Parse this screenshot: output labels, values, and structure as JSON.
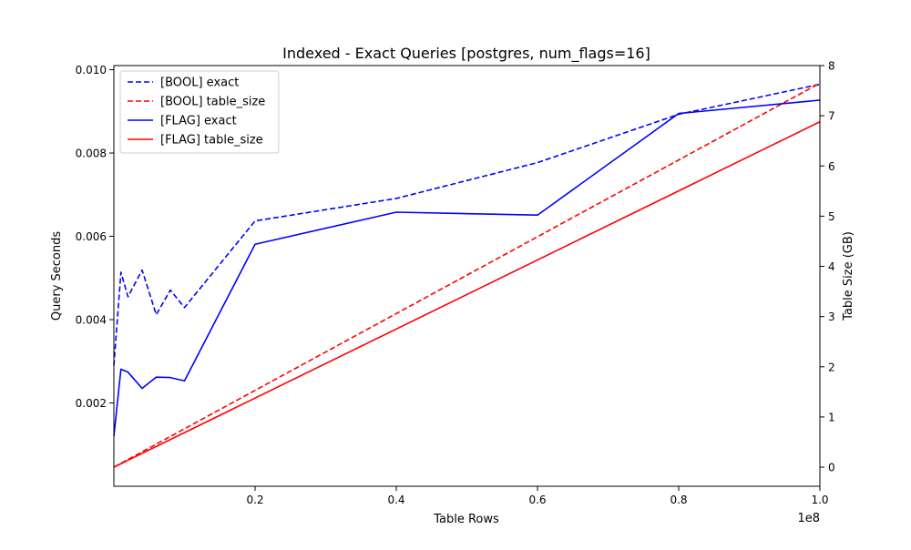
{
  "chart_data": {
    "type": "line",
    "title": "Indexed - Exact Queries [postgres, num_flags=16]",
    "xlabel": "Table Rows",
    "ylabel": "Query Seconds",
    "y2label": "Table Size (GB)",
    "x_offset_text": "1e8",
    "xlim": [
      0,
      1.0
    ],
    "ylim": [
      0.0,
      0.0101
    ],
    "y2lim": [
      -0.38,
      8.0
    ],
    "x_ticks": [
      0.2,
      0.4,
      0.6,
      0.8,
      1.0
    ],
    "x_tick_labels": [
      "0.2",
      "0.4",
      "0.6",
      "0.8",
      "1.0"
    ],
    "y_ticks": [
      0.002,
      0.004,
      0.006,
      0.008,
      0.01
    ],
    "y_tick_labels": [
      "0.002",
      "0.004",
      "0.006",
      "0.008",
      "0.010"
    ],
    "y2_ticks": [
      0,
      1,
      2,
      3,
      4,
      5,
      6,
      7,
      8
    ],
    "y2_tick_labels": [
      "0",
      "1",
      "2",
      "3",
      "4",
      "5",
      "6",
      "7",
      "8"
    ],
    "grid": false,
    "legend_position": "top-left",
    "series": [
      {
        "name": "[BOOL] exact",
        "axis": "left",
        "color": "#0000ff",
        "dash": "dashed",
        "x": [
          0.0,
          0.01,
          0.02,
          0.04,
          0.06,
          0.08,
          0.1,
          0.2,
          0.4,
          0.6,
          0.8,
          1.0
        ],
        "y": [
          0.0029,
          0.00514,
          0.00455,
          0.00519,
          0.00412,
          0.00471,
          0.00429,
          0.00637,
          0.00691,
          0.00777,
          0.00893,
          0.00965
        ]
      },
      {
        "name": "[BOOL] table_size",
        "axis": "right",
        "color": "#ff0000",
        "dash": "dashed",
        "x": [
          0.0,
          1.0
        ],
        "y": [
          0.0,
          7.65
        ]
      },
      {
        "name": "[FLAG] exact",
        "axis": "left",
        "color": "#0000ff",
        "dash": "solid",
        "x": [
          0.0,
          0.01,
          0.02,
          0.04,
          0.06,
          0.08,
          0.1,
          0.2,
          0.4,
          0.6,
          0.8,
          1.0
        ],
        "y": [
          0.0012,
          0.00281,
          0.00274,
          0.00235,
          0.00262,
          0.00261,
          0.00253,
          0.00581,
          0.00658,
          0.00651,
          0.00895,
          0.00927
        ]
      },
      {
        "name": "[FLAG] table_size",
        "axis": "right",
        "color": "#ff0000",
        "dash": "solid",
        "x": [
          0.0,
          1.0
        ],
        "y": [
          0.0,
          6.88
        ]
      }
    ]
  }
}
